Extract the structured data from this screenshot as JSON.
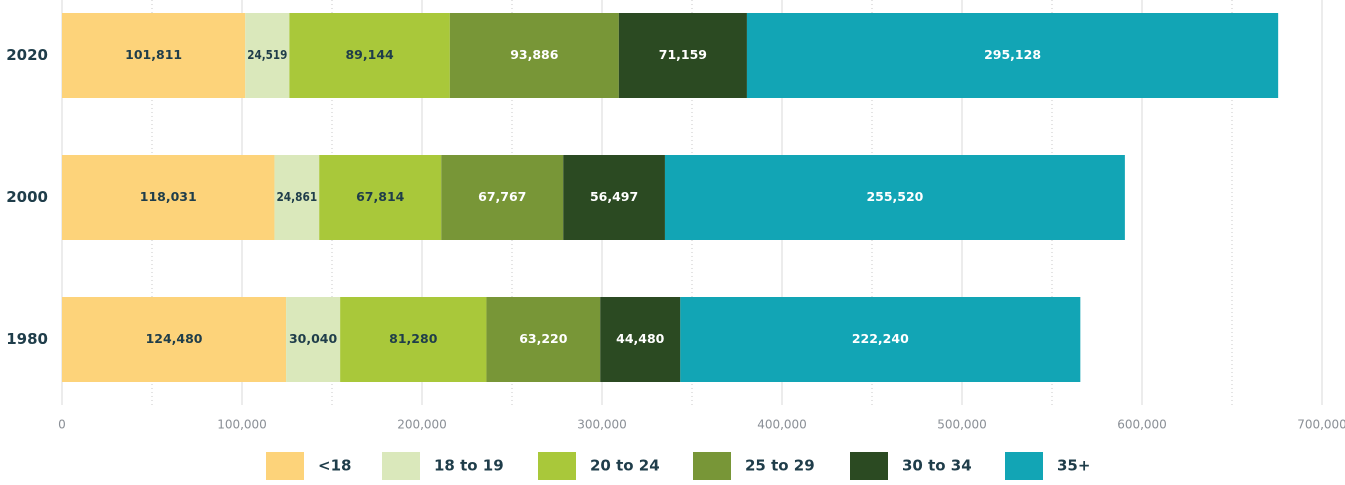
{
  "chart_data": {
    "type": "stacked-hbar",
    "categories": [
      "2020",
      "2000",
      "1980"
    ],
    "series": [
      {
        "name": "<18",
        "color": "#fdd37a",
        "values": [
          101811,
          118031,
          124480
        ],
        "value_labels": [
          "101,811",
          "118,031",
          "124,480"
        ]
      },
      {
        "name": "18 to 19",
        "color": "#dae8bb",
        "values": [
          24519,
          24861,
          30040
        ],
        "value_labels": [
          "24,519",
          "24,861",
          "30,040"
        ]
      },
      {
        "name": "20 to 24",
        "color": "#a9c83a",
        "values": [
          89144,
          67814,
          81280
        ],
        "value_labels": [
          "89,144",
          "67,814",
          "81,280"
        ]
      },
      {
        "name": "25 to 29",
        "color": "#789637",
        "values": [
          93886,
          67767,
          63220
        ],
        "value_labels": [
          "93,886",
          "67,767",
          "63,220"
        ]
      },
      {
        "name": "30 to 34",
        "color": "#2b4a22",
        "values": [
          71159,
          56497,
          44480
        ],
        "value_labels": [
          "71,159",
          "56,497",
          "44,480"
        ]
      },
      {
        "name": "35+",
        "color": "#12a5b5",
        "values": [
          295128,
          255520,
          222240
        ],
        "value_labels": [
          "295,128",
          "255,520",
          "222,240"
        ]
      }
    ],
    "xlim": [
      0,
      700000
    ],
    "xticks": [
      0,
      {
        "value": 100000,
        "label": "100,000"
      },
      {
        "value": 200000,
        "label": "200,000"
      },
      {
        "value": 300000,
        "label": "300,000"
      },
      {
        "value": 400000,
        "label": "400,000"
      },
      {
        "value": 500000,
        "label": "500,000"
      },
      {
        "value": 600000,
        "label": "600,000"
      },
      {
        "value": 700000,
        "label": "700,000"
      }
    ],
    "grid": true
  }
}
